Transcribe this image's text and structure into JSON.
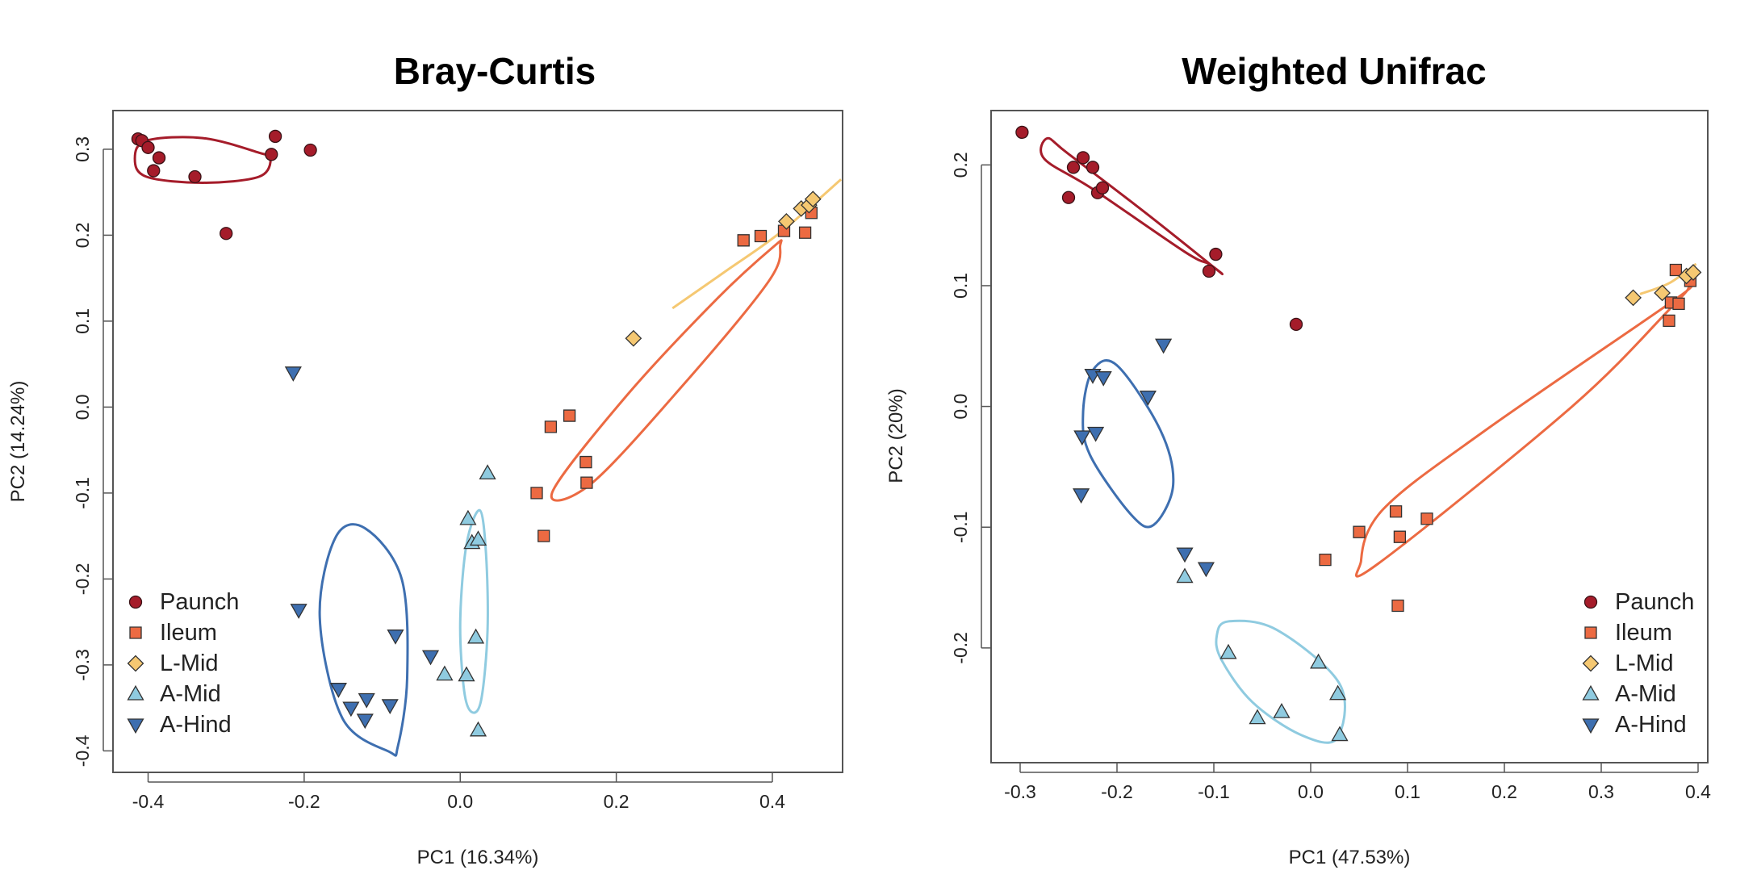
{
  "chart_data": [
    {
      "type": "scatter",
      "title": "Bray-Curtis",
      "xlabel": "PC1 (16.34%)",
      "ylabel": "PC2 (14.24%)",
      "xlim": [
        -0.445,
        0.49
      ],
      "ylim": [
        -0.425,
        0.345
      ],
      "xticks": [
        -0.4,
        -0.2,
        0.0,
        0.2,
        0.4
      ],
      "xtick_labels": [
        "-0.4",
        "-0.2",
        "0.0",
        "0.2",
        "0.4"
      ],
      "yticks": [
        -0.4,
        -0.3,
        -0.2,
        -0.1,
        0.0,
        0.1,
        0.2,
        0.3
      ],
      "ytick_labels": [
        "-0.4",
        "-0.3",
        "-0.2",
        "-0.1",
        "0.0",
        "0.1",
        "0.2",
        "0.3"
      ],
      "grid": false,
      "legend_position": "bottom-left",
      "series": [
        {
          "name": "Paunch",
          "marker": "circle",
          "color": "#a51c2a",
          "x": [
            -0.413,
            -0.408,
            -0.4,
            -0.393,
            -0.386,
            -0.34,
            -0.3,
            -0.242,
            -0.237,
            -0.192
          ],
          "y": [
            0.312,
            0.31,
            0.302,
            0.275,
            0.29,
            0.268,
            0.202,
            0.294,
            0.315,
            0.299
          ]
        },
        {
          "name": "Ileum",
          "marker": "square",
          "color": "#ec6a42",
          "x": [
            0.098,
            0.107,
            0.116,
            0.14,
            0.161,
            0.162,
            0.363,
            0.385,
            0.415,
            0.442,
            0.45
          ],
          "y": [
            -0.1,
            -0.15,
            -0.023,
            -0.01,
            -0.064,
            -0.088,
            0.194,
            0.199,
            0.205,
            0.203,
            0.226
          ]
        },
        {
          "name": "L-Mid",
          "marker": "diamond",
          "color": "#f5c872",
          "x": [
            0.222,
            0.418,
            0.437,
            0.447,
            0.452
          ],
          "y": [
            0.08,
            0.216,
            0.231,
            0.235,
            0.242
          ]
        },
        {
          "name": "A-Mid",
          "marker": "triangle-up",
          "color": "#8fcbe0",
          "x": [
            -0.02,
            0.008,
            0.01,
            0.015,
            0.02,
            0.023,
            0.023,
            0.035
          ],
          "y": [
            -0.311,
            -0.312,
            -0.13,
            -0.158,
            -0.268,
            -0.154,
            -0.376,
            -0.077
          ]
        },
        {
          "name": "A-Hind",
          "marker": "triangle-down",
          "color": "#3e6fb0",
          "x": [
            -0.214,
            -0.207,
            -0.156,
            -0.14,
            -0.122,
            -0.12,
            -0.09,
            -0.083,
            -0.038
          ],
          "y": [
            0.04,
            -0.236,
            -0.328,
            -0.35,
            -0.364,
            -0.34,
            -0.347,
            -0.266,
            -0.29
          ]
        }
      ],
      "ellipses": [
        {
          "series": "Paunch",
          "points": [
            [
              -0.417,
              0.289
            ],
            [
              -0.402,
              0.31
            ],
            [
              -0.33,
              0.313
            ],
            [
              -0.258,
              0.296
            ],
            [
              -0.243,
              0.289
            ],
            [
              -0.258,
              0.268
            ],
            [
              -0.33,
              0.261
            ],
            [
              -0.402,
              0.268
            ]
          ]
        },
        {
          "series": "Ileum",
          "points": [
            [
              0.118,
              -0.099
            ],
            [
              0.212,
              0.012
            ],
            [
              0.328,
              0.125
            ],
            [
              0.402,
              0.187
            ],
            [
              0.41,
              0.188
            ],
            [
              0.395,
              0.146
            ],
            [
              0.285,
              0.025
            ],
            [
              0.168,
              -0.089
            ]
          ]
        },
        {
          "series": "L-Mid",
          "points": [
            [
              0.272,
              0.115
            ],
            [
              0.34,
              0.158
            ],
            [
              0.41,
              0.203
            ],
            [
              0.488,
              0.265
            ]
          ]
        },
        {
          "series": "A-Mid",
          "points": [
            [
              0.005,
              -0.33
            ],
            [
              0.0,
              -0.25
            ],
            [
              0.008,
              -0.16
            ],
            [
              0.025,
              -0.12
            ],
            [
              0.033,
              -0.17
            ],
            [
              0.035,
              -0.26
            ],
            [
              0.027,
              -0.34
            ],
            [
              0.015,
              -0.355
            ]
          ]
        },
        {
          "series": "A-Hind",
          "points": [
            [
              -0.091,
              -0.401
            ],
            [
              -0.151,
              -0.362
            ],
            [
              -0.18,
              -0.245
            ],
            [
              -0.16,
              -0.152
            ],
            [
              -0.122,
              -0.141
            ],
            [
              -0.075,
              -0.2
            ],
            [
              -0.068,
              -0.315
            ],
            [
              -0.08,
              -0.395
            ]
          ]
        }
      ]
    },
    {
      "type": "scatter",
      "title": "Weighted Unifrac",
      "xlabel": "PC1 (47.53%)",
      "ylabel": "PC2 (20%)",
      "xlim": [
        -0.33,
        0.41
      ],
      "ylim": [
        -0.295,
        0.245
      ],
      "xticks": [
        -0.3,
        -0.2,
        -0.1,
        0.0,
        0.1,
        0.2,
        0.3,
        0.4
      ],
      "xtick_labels": [
        "-0.3",
        "-0.2",
        "-0.1",
        "0.0",
        "0.1",
        "0.2",
        "0.3",
        "0.4"
      ],
      "yticks": [
        -0.2,
        -0.1,
        0.0,
        0.1,
        0.2
      ],
      "ytick_labels": [
        "-0.2",
        "-0.1",
        "0.0",
        "0.1",
        "0.2"
      ],
      "grid": false,
      "legend_position": "bottom-right",
      "series": [
        {
          "name": "Paunch",
          "marker": "circle",
          "color": "#a51c2a",
          "x": [
            -0.298,
            -0.25,
            -0.245,
            -0.235,
            -0.225,
            -0.22,
            -0.215,
            -0.105,
            -0.098,
            -0.015
          ],
          "y": [
            0.227,
            0.173,
            0.198,
            0.206,
            0.198,
            0.177,
            0.181,
            0.112,
            0.126,
            0.068
          ]
        },
        {
          "name": "Ileum",
          "marker": "square",
          "color": "#ec6a42",
          "x": [
            0.015,
            0.05,
            0.088,
            0.09,
            0.092,
            0.12,
            0.37,
            0.372,
            0.377,
            0.38,
            0.392
          ],
          "y": [
            -0.127,
            -0.104,
            -0.087,
            -0.165,
            -0.108,
            -0.093,
            0.071,
            0.086,
            0.113,
            0.085,
            0.104
          ]
        },
        {
          "name": "L-Mid",
          "marker": "diamond",
          "color": "#f5c872",
          "x": [
            0.333,
            0.363,
            0.388,
            0.395
          ],
          "y": [
            0.09,
            0.094,
            0.108,
            0.111
          ]
        },
        {
          "name": "A-Mid",
          "marker": "triangle-up",
          "color": "#8fcbe0",
          "x": [
            -0.13,
            -0.085,
            -0.055,
            -0.03,
            0.008,
            0.028,
            0.03
          ],
          "y": [
            -0.141,
            -0.204,
            -0.258,
            -0.253,
            -0.212,
            -0.238,
            -0.272
          ]
        },
        {
          "name": "A-Hind",
          "marker": "triangle-down",
          "color": "#3e6fb0",
          "x": [
            -0.237,
            -0.236,
            -0.225,
            -0.222,
            -0.214,
            -0.168,
            -0.152,
            -0.13,
            -0.108
          ],
          "y": [
            -0.073,
            -0.025,
            0.026,
            -0.022,
            0.024,
            0.008,
            0.051,
            -0.122,
            -0.134
          ]
        }
      ],
      "ellipses": [
        {
          "series": "Paunch",
          "points": [
            [
              -0.275,
              0.205
            ],
            [
              -0.272,
              0.222
            ],
            [
              -0.25,
              0.209
            ],
            [
              -0.17,
              0.16
            ],
            [
              -0.095,
              0.112
            ],
            [
              -0.105,
              0.118
            ],
            [
              -0.13,
              0.128
            ],
            [
              -0.225,
              0.18
            ]
          ]
        },
        {
          "series": "Ileum",
          "points": [
            [
              0.052,
              -0.128
            ],
            [
              0.075,
              -0.085
            ],
            [
              0.18,
              -0.02
            ],
            [
              0.37,
              0.085
            ],
            [
              0.39,
              0.098
            ],
            [
              0.37,
              0.08
            ],
            [
              0.27,
              0.0
            ],
            [
              0.07,
              -0.13
            ]
          ]
        },
        {
          "series": "L-Mid",
          "points": [
            [
              0.34,
              0.093
            ],
            [
              0.37,
              0.102
            ],
            [
              0.398,
              0.118
            ]
          ]
        },
        {
          "series": "A-Mid",
          "points": [
            [
              -0.097,
              -0.19
            ],
            [
              -0.085,
              -0.178
            ],
            [
              -0.035,
              -0.185
            ],
            [
              0.03,
              -0.23
            ],
            [
              0.027,
              -0.275
            ],
            [
              -0.01,
              -0.272
            ],
            [
              -0.06,
              -0.245
            ],
            [
              -0.092,
              -0.21
            ]
          ]
        },
        {
          "series": "A-Hind",
          "points": [
            [
              -0.235,
              -0.005
            ],
            [
              -0.225,
              0.03
            ],
            [
              -0.2,
              0.034
            ],
            [
              -0.155,
              -0.02
            ],
            [
              -0.142,
              -0.065
            ],
            [
              -0.162,
              -0.098
            ],
            [
              -0.185,
              -0.09
            ],
            [
              -0.228,
              -0.04
            ]
          ]
        }
      ]
    }
  ]
}
